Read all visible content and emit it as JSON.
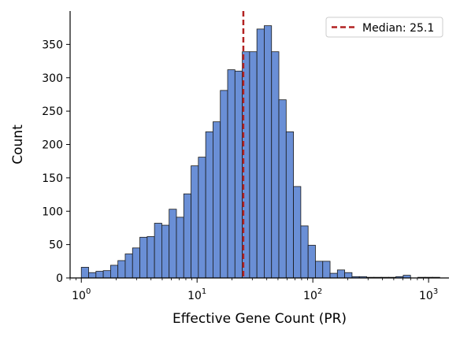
{
  "chart_data": {
    "type": "bar",
    "subtype": "histogram",
    "x_scale": "log",
    "xlabel": "Effective Gene Count (PR)",
    "ylabel": "Count",
    "xlim": [
      0.8,
      1500
    ],
    "ylim": [
      0,
      400
    ],
    "x_tick_labels": [
      {
        "base": "10",
        "exp": "0",
        "value": 1
      },
      {
        "base": "10",
        "exp": "1",
        "value": 10
      },
      {
        "base": "10",
        "exp": "2",
        "value": 100
      },
      {
        "base": "10",
        "exp": "3",
        "value": 1000
      }
    ],
    "y_ticks": [
      0,
      50,
      100,
      150,
      200,
      250,
      300,
      350
    ],
    "bin_range": [
      1.0,
      1250
    ],
    "bar_color": "#6a8fd6",
    "bar_edge_color": "#1a1a1a",
    "counts": [
      16,
      8,
      10,
      11,
      19,
      26,
      36,
      45,
      61,
      62,
      82,
      79,
      103,
      91,
      126,
      168,
      181,
      219,
      234,
      281,
      312,
      310,
      339,
      339,
      373,
      378,
      339,
      267,
      219,
      137,
      78,
      49,
      25,
      25,
      7,
      12,
      8,
      2,
      2,
      1,
      1,
      1,
      1,
      2,
      4,
      0,
      1,
      1,
      1
    ],
    "median": {
      "value": 25.1,
      "label": "Median: 25.1",
      "color": "#b22222",
      "style": "dashed"
    },
    "legend_position": "top-right",
    "grid": false
  }
}
